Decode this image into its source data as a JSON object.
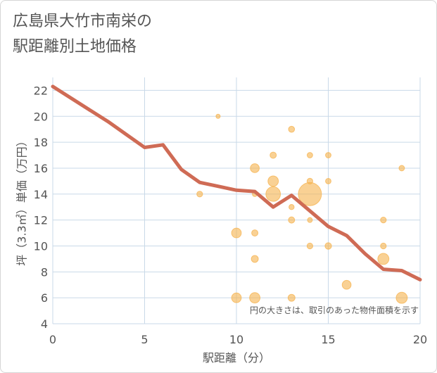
{
  "title_lines": [
    "広島県大竹市南栄の",
    "駅距離別土地価格"
  ],
  "chart_data": {
    "type": "scatter",
    "title": "広島県大竹市南栄の駅距離別土地価格",
    "xlabel": "駅距離（分）",
    "ylabel": "坪（3.3㎡）単価（万円）",
    "xlim": [
      0,
      20
    ],
    "ylim": [
      4,
      23
    ],
    "xticks": [
      0,
      5,
      10,
      15,
      20
    ],
    "yticks": [
      4,
      6,
      8,
      10,
      12,
      14,
      16,
      18,
      20,
      22
    ],
    "grid": true,
    "note": "円の大きさは、取引のあった物件面積を示す",
    "colors": {
      "bubble": "#f5b24c",
      "line": "#cf6b55",
      "grid": "#c9d9e8"
    },
    "bubbles": [
      {
        "x": 8,
        "y": 14,
        "size": 1
      },
      {
        "x": 9,
        "y": 20,
        "size": 0.5
      },
      {
        "x": 10,
        "y": 11,
        "size": 3
      },
      {
        "x": 10,
        "y": 6,
        "size": 3
      },
      {
        "x": 11,
        "y": 16,
        "size": 2.5
      },
      {
        "x": 11,
        "y": 14,
        "size": 0.7
      },
      {
        "x": 11,
        "y": 11,
        "size": 1.2
      },
      {
        "x": 11,
        "y": 9,
        "size": 1.5
      },
      {
        "x": 11,
        "y": 6,
        "size": 3.5
      },
      {
        "x": 12,
        "y": 17,
        "size": 1.2
      },
      {
        "x": 12,
        "y": 15,
        "size": 3.5
      },
      {
        "x": 12,
        "y": 14,
        "size": 7
      },
      {
        "x": 13,
        "y": 19,
        "size": 1.1
      },
      {
        "x": 13,
        "y": 13,
        "size": 0.8
      },
      {
        "x": 13,
        "y": 12,
        "size": 1.2
      },
      {
        "x": 13,
        "y": 6,
        "size": 1.5
      },
      {
        "x": 14,
        "y": 17,
        "size": 0.9
      },
      {
        "x": 14,
        "y": 15,
        "size": 1
      },
      {
        "x": 14,
        "y": 14,
        "size": 18
      },
      {
        "x": 14,
        "y": 12,
        "size": 0.7
      },
      {
        "x": 14,
        "y": 10,
        "size": 1
      },
      {
        "x": 15,
        "y": 17,
        "size": 0.9
      },
      {
        "x": 15,
        "y": 15,
        "size": 0.9
      },
      {
        "x": 15,
        "y": 10,
        "size": 1.3
      },
      {
        "x": 16,
        "y": 7,
        "size": 2.5
      },
      {
        "x": 18,
        "y": 12,
        "size": 1
      },
      {
        "x": 18,
        "y": 10,
        "size": 1
      },
      {
        "x": 18,
        "y": 9,
        "size": 4
      },
      {
        "x": 19,
        "y": 16,
        "size": 0.9
      },
      {
        "x": 19,
        "y": 6,
        "size": 4
      }
    ],
    "trend": {
      "x": [
        0,
        1,
        2,
        3,
        4,
        5,
        6,
        7,
        8,
        9,
        10,
        11,
        12,
        13,
        14,
        15,
        16,
        17,
        18,
        19,
        20
      ],
      "y": [
        22.3,
        21.4,
        20.5,
        19.6,
        18.6,
        17.6,
        17.8,
        15.9,
        14.9,
        14.6,
        14.3,
        14.2,
        13.0,
        13.9,
        12.7,
        11.5,
        10.8,
        9.4,
        8.2,
        8.1,
        7.4
      ]
    }
  }
}
